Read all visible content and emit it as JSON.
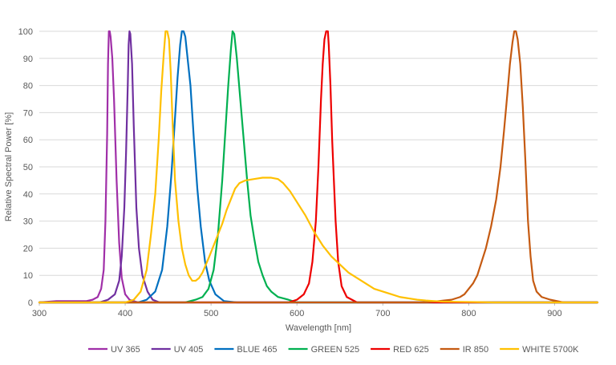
{
  "chart_data": {
    "type": "line",
    "title": "",
    "xlabel": "Wavelength [nm]",
    "ylabel": "Relative Spectral Power [%]",
    "xlim": [
      300,
      950
    ],
    "ylim": [
      0,
      100
    ],
    "x_ticks": [
      300,
      400,
      500,
      600,
      700,
      800,
      900
    ],
    "y_ticks": [
      0,
      10,
      20,
      30,
      40,
      50,
      60,
      70,
      80,
      90,
      100
    ],
    "grid": "horizontal",
    "legend_position": "bottom",
    "series": [
      {
        "name": "UV 365",
        "color": "#a02fa8",
        "points": [
          [
            300,
            0
          ],
          [
            320,
            0.5
          ],
          [
            340,
            0.5
          ],
          [
            355,
            0.5
          ],
          [
            362,
            1
          ],
          [
            368,
            2
          ],
          [
            372,
            5
          ],
          [
            375,
            12
          ],
          [
            377,
            30
          ],
          [
            379,
            62
          ],
          [
            380,
            88
          ],
          [
            381,
            100
          ],
          [
            382,
            100
          ],
          [
            383,
            98
          ],
          [
            385,
            90
          ],
          [
            387,
            75
          ],
          [
            390,
            45
          ],
          [
            393,
            22
          ],
          [
            396,
            9
          ],
          [
            400,
            3
          ],
          [
            405,
            1
          ],
          [
            415,
            0
          ],
          [
            950,
            0
          ]
        ]
      },
      {
        "name": "UV 405",
        "color": "#7030a0",
        "points": [
          [
            300,
            0
          ],
          [
            370,
            0
          ],
          [
            380,
            1
          ],
          [
            388,
            3
          ],
          [
            393,
            8
          ],
          [
            396,
            17
          ],
          [
            399,
            35
          ],
          [
            401,
            55
          ],
          [
            403,
            80
          ],
          [
            404,
            95
          ],
          [
            405,
            100
          ],
          [
            406,
            99
          ],
          [
            408,
            88
          ],
          [
            410,
            65
          ],
          [
            413,
            35
          ],
          [
            416,
            20
          ],
          [
            420,
            10
          ],
          [
            426,
            4
          ],
          [
            432,
            1
          ],
          [
            440,
            0
          ],
          [
            950,
            0
          ]
        ]
      },
      {
        "name": "BLUE 465",
        "color": "#0070c0",
        "points": [
          [
            300,
            0
          ],
          [
            415,
            0
          ],
          [
            425,
            1
          ],
          [
            435,
            4
          ],
          [
            443,
            12
          ],
          [
            449,
            28
          ],
          [
            454,
            48
          ],
          [
            458,
            68
          ],
          [
            461,
            83
          ],
          [
            464,
            95
          ],
          [
            466,
            100
          ],
          [
            468,
            100
          ],
          [
            470,
            98
          ],
          [
            472,
            92
          ],
          [
            476,
            80
          ],
          [
            480,
            60
          ],
          [
            484,
            42
          ],
          [
            488,
            28
          ],
          [
            493,
            15
          ],
          [
            498,
            8
          ],
          [
            505,
            3
          ],
          [
            515,
            0.5
          ],
          [
            530,
            0
          ],
          [
            950,
            0
          ]
        ]
      },
      {
        "name": "GREEN 525",
        "color": "#00b050",
        "points": [
          [
            300,
            0
          ],
          [
            470,
            0
          ],
          [
            482,
            1
          ],
          [
            490,
            2
          ],
          [
            497,
            5
          ],
          [
            503,
            12
          ],
          [
            508,
            25
          ],
          [
            513,
            45
          ],
          [
            517,
            65
          ],
          [
            520,
            80
          ],
          [
            523,
            93
          ],
          [
            525,
            100
          ],
          [
            527,
            99
          ],
          [
            530,
            90
          ],
          [
            534,
            75
          ],
          [
            538,
            60
          ],
          [
            542,
            45
          ],
          [
            546,
            32
          ],
          [
            550,
            24
          ],
          [
            555,
            15
          ],
          [
            560,
            10
          ],
          [
            565,
            6
          ],
          [
            570,
            4
          ],
          [
            578,
            2
          ],
          [
            590,
            1
          ],
          [
            600,
            0
          ],
          [
            950,
            0
          ]
        ]
      },
      {
        "name": "RED 625",
        "color": "#ee0000",
        "points": [
          [
            300,
            0
          ],
          [
            590,
            0
          ],
          [
            600,
            1
          ],
          [
            608,
            3
          ],
          [
            614,
            7
          ],
          [
            618,
            15
          ],
          [
            622,
            30
          ],
          [
            625,
            50
          ],
          [
            628,
            75
          ],
          [
            630,
            88
          ],
          [
            632,
            97
          ],
          [
            634,
            100
          ],
          [
            636,
            100
          ],
          [
            637,
            95
          ],
          [
            639,
            80
          ],
          [
            641,
            60
          ],
          [
            643,
            45
          ],
          [
            645,
            30
          ],
          [
            648,
            15
          ],
          [
            652,
            6
          ],
          [
            658,
            2
          ],
          [
            670,
            0
          ],
          [
            950,
            0
          ]
        ]
      },
      {
        "name": "IR 850",
        "color": "#c55a11",
        "points": [
          [
            300,
            0
          ],
          [
            750,
            0
          ],
          [
            765,
            0.5
          ],
          [
            780,
            1
          ],
          [
            790,
            2
          ],
          [
            795,
            3
          ],
          [
            800,
            5
          ],
          [
            805,
            7
          ],
          [
            810,
            10
          ],
          [
            815,
            15
          ],
          [
            820,
            20
          ],
          [
            826,
            28
          ],
          [
            832,
            38
          ],
          [
            837,
            50
          ],
          [
            841,
            63
          ],
          [
            845,
            77
          ],
          [
            848,
            88
          ],
          [
            851,
            96
          ],
          [
            853,
            100
          ],
          [
            855,
            100
          ],
          [
            857,
            97
          ],
          [
            860,
            88
          ],
          [
            863,
            72
          ],
          [
            866,
            52
          ],
          [
            869,
            30
          ],
          [
            872,
            17
          ],
          [
            875,
            8
          ],
          [
            879,
            4
          ],
          [
            885,
            2
          ],
          [
            895,
            1
          ],
          [
            910,
            0
          ],
          [
            950,
            0
          ]
        ]
      },
      {
        "name": "WHITE 5700K",
        "color": "#ffc000",
        "points": [
          [
            300,
            0
          ],
          [
            400,
            0
          ],
          [
            410,
            1
          ],
          [
            418,
            4
          ],
          [
            425,
            12
          ],
          [
            430,
            25
          ],
          [
            435,
            40
          ],
          [
            439,
            60
          ],
          [
            442,
            78
          ],
          [
            445,
            92
          ],
          [
            447,
            100
          ],
          [
            449,
            100
          ],
          [
            451,
            97
          ],
          [
            453,
            85
          ],
          [
            455,
            68
          ],
          [
            458,
            45
          ],
          [
            462,
            30
          ],
          [
            466,
            20
          ],
          [
            470,
            14
          ],
          [
            474,
            10
          ],
          [
            478,
            8
          ],
          [
            482,
            8
          ],
          [
            486,
            9
          ],
          [
            490,
            11
          ],
          [
            494,
            14
          ],
          [
            498,
            17
          ],
          [
            503,
            21
          ],
          [
            508,
            25
          ],
          [
            513,
            29
          ],
          [
            518,
            34
          ],
          [
            523,
            38
          ],
          [
            528,
            42
          ],
          [
            533,
            44
          ],
          [
            540,
            45
          ],
          [
            550,
            45.5
          ],
          [
            560,
            46
          ],
          [
            570,
            46
          ],
          [
            578,
            45.5
          ],
          [
            584,
            44
          ],
          [
            592,
            41
          ],
          [
            600,
            37
          ],
          [
            610,
            32
          ],
          [
            620,
            26
          ],
          [
            630,
            21
          ],
          [
            640,
            17
          ],
          [
            650,
            14
          ],
          [
            660,
            11
          ],
          [
            670,
            9
          ],
          [
            680,
            7
          ],
          [
            690,
            5
          ],
          [
            700,
            4
          ],
          [
            710,
            3
          ],
          [
            720,
            2
          ],
          [
            730,
            1.5
          ],
          [
            740,
            1
          ],
          [
            750,
            0.7
          ],
          [
            760,
            0.5
          ],
          [
            770,
            0.3
          ],
          [
            790,
            0.2
          ],
          [
            810,
            0.1
          ],
          [
            830,
            0
          ],
          [
            950,
            0
          ]
        ]
      }
    ]
  }
}
